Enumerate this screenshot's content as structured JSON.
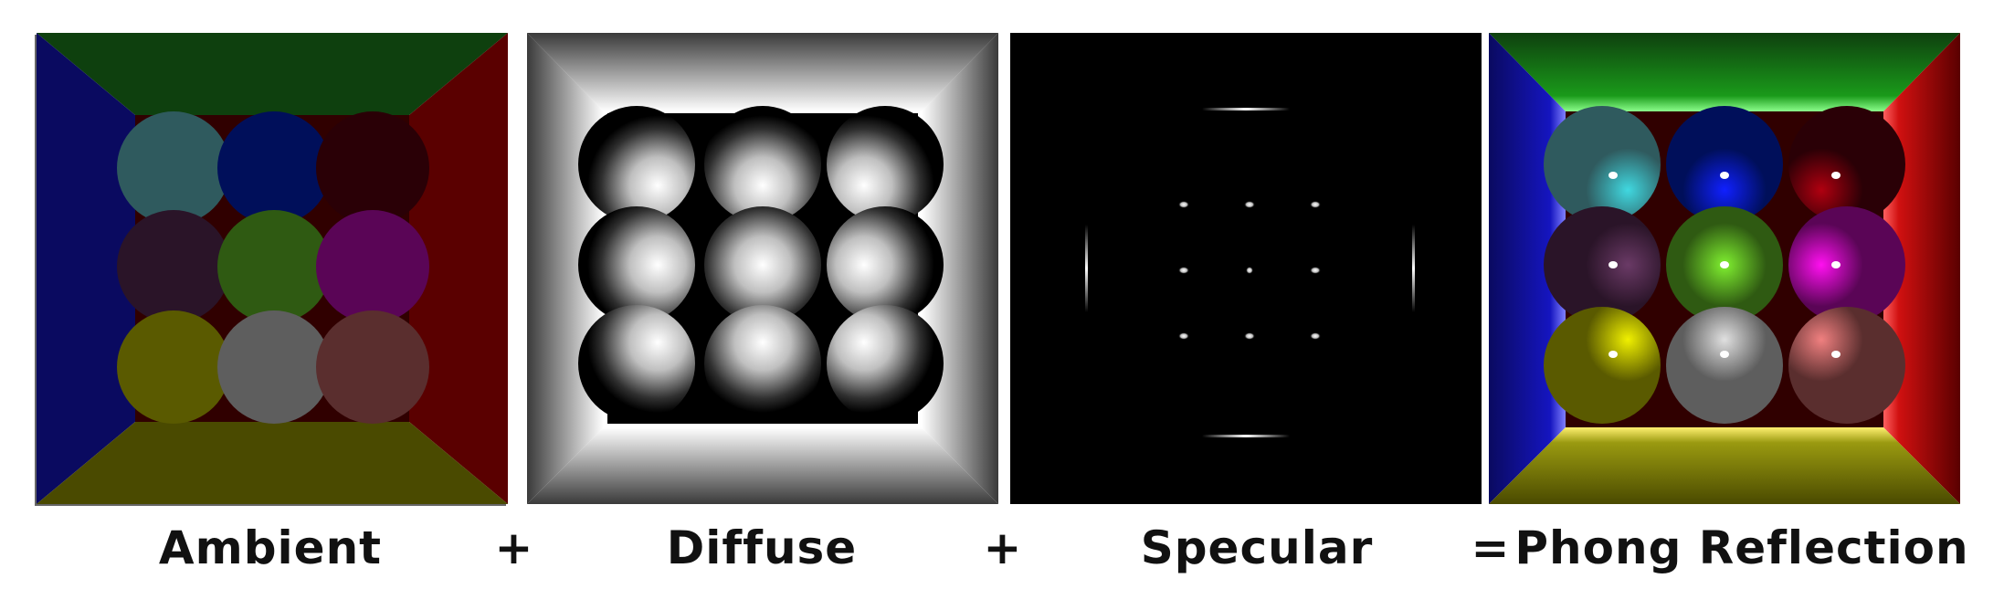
{
  "labels": {
    "ambient": "Ambient",
    "plus1": "+",
    "diffuse": "Diffuse",
    "plus2": "+",
    "specular": "Specular",
    "equals": "=",
    "phong": "Phong Reflection"
  },
  "colors": {
    "background": "#ffffff",
    "text": "#111111",
    "left_wall": "#0a0a60",
    "right_wall": "#5a0000",
    "ceiling": "#0e400e",
    "floor": "#4a4a00",
    "back_wall": "#300000",
    "sphere_colors": [
      [
        "#2f5a5e",
        "#000f5a",
        "#2a0006"
      ],
      [
        "#2a1428",
        "#2f5a12",
        "#5a0556"
      ],
      [
        "#5a5a00",
        "#5e5e5e",
        "#5a2e2e"
      ]
    ],
    "sphere_phong_colors": [
      [
        "#40d8e0",
        "#1020ff",
        "#b00010"
      ],
      [
        "#6a3a66",
        "#80f030",
        "#ff10f0"
      ],
      [
        "#f0f000",
        "#e0e0e0",
        "#f08080"
      ]
    ]
  }
}
